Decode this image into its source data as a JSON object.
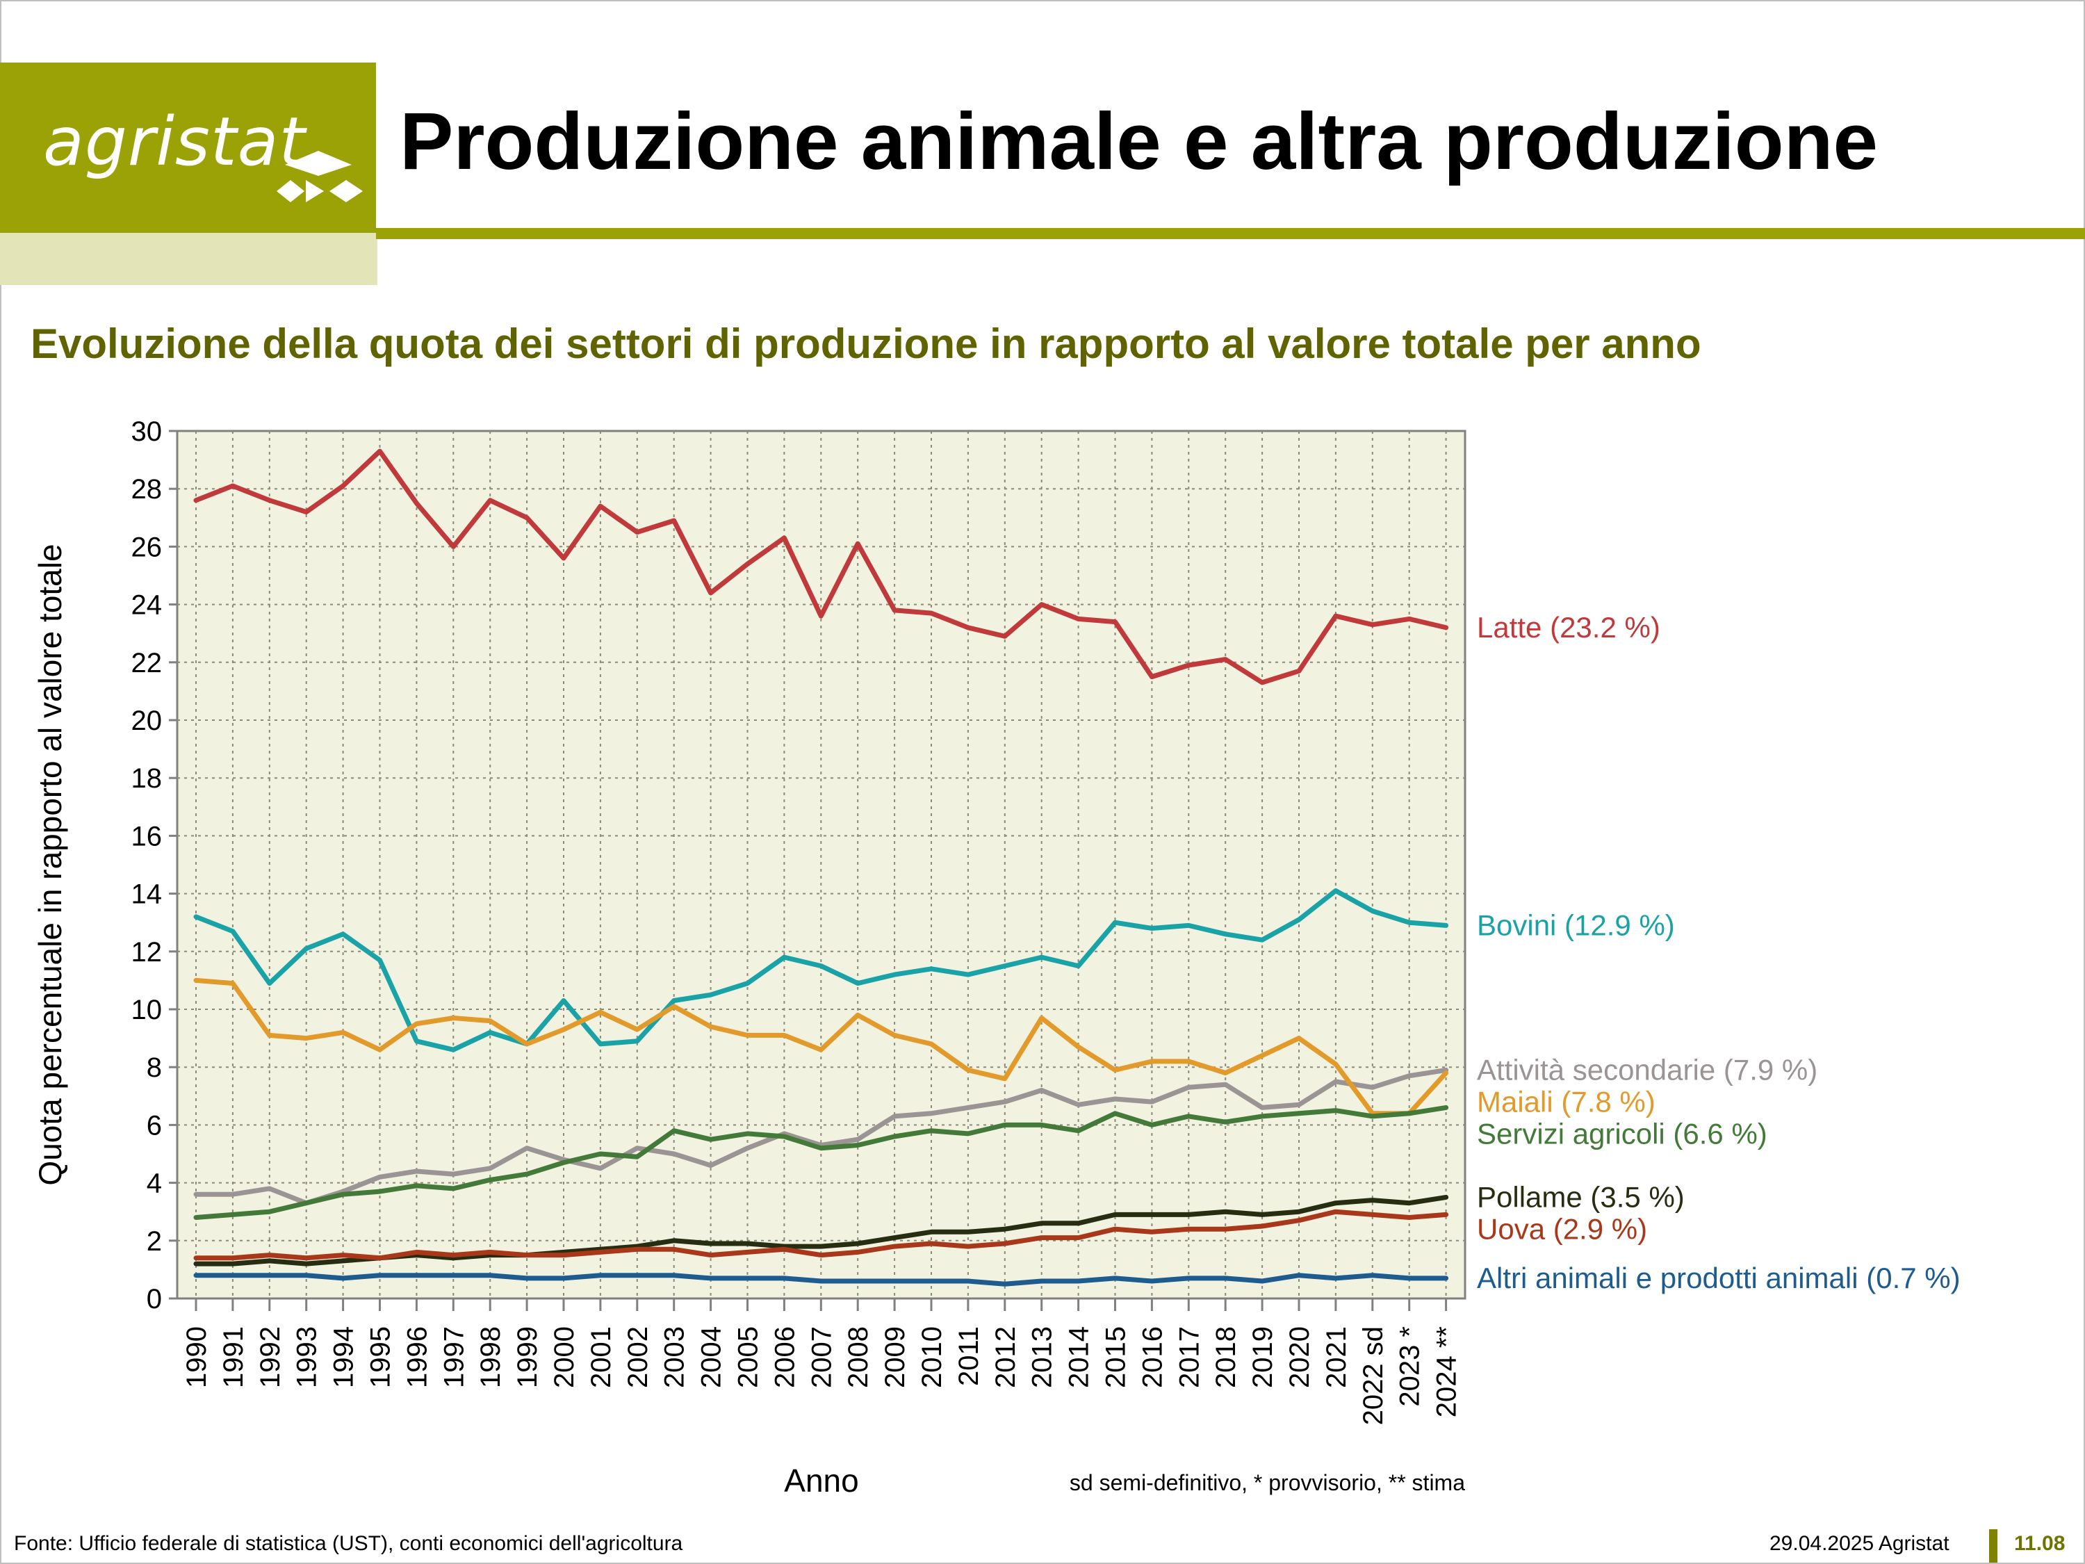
{
  "header": {
    "logo_text": "agristat",
    "title": "Produzione animale e altra produzione",
    "subtitle": "Evoluzione della quota dei settori di produzione in rapporto al valore totale per anno",
    "brand_color": "#9aa206"
  },
  "chart_data": {
    "type": "line",
    "title": "Evoluzione della quota dei settori di produzione in rapporto al valore totale per anno",
    "xlabel": "Anno",
    "ylabel": "Quota percentuale in rapporto al valore totale",
    "ylim": [
      0,
      30
    ],
    "yticks": [
      "0",
      "2",
      "4",
      "6",
      "8",
      "10",
      "12",
      "14",
      "16",
      "18",
      "20",
      "22",
      "24",
      "26",
      "28",
      "30"
    ],
    "grid": true,
    "background": "#f2f2e1",
    "categories": [
      "1990",
      "1991",
      "1992",
      "1993",
      "1994",
      "1995",
      "1996",
      "1997",
      "1998",
      "1999",
      "2000",
      "2001",
      "2002",
      "2003",
      "2004",
      "2005",
      "2006",
      "2007",
      "2008",
      "2009",
      "2010",
      "2011",
      "2012",
      "2013",
      "2014",
      "2015",
      "2016",
      "2017",
      "2018",
      "2019",
      "2020",
      "2021",
      "2022 sd",
      "2023 *",
      "2024 **"
    ],
    "note": "sd semi-definitivo, * provvisorio, ** stima",
    "series": [
      {
        "name": "Latte (23.2 %)",
        "color": "#c0393b",
        "values": [
          27.6,
          28.1,
          27.6,
          27.2,
          28.1,
          29.3,
          27.5,
          26.0,
          27.6,
          27.0,
          25.6,
          27.4,
          26.5,
          26.9,
          24.4,
          25.4,
          26.3,
          23.6,
          26.1,
          23.8,
          23.7,
          23.2,
          22.9,
          24.0,
          23.5,
          23.4,
          21.5,
          21.9,
          22.1,
          21.3,
          21.7,
          23.6,
          23.3,
          23.5,
          23.2
        ]
      },
      {
        "name": "Bovini (12.9 %)",
        "color": "#1aa3a7",
        "values": [
          13.2,
          12.7,
          10.9,
          12.1,
          12.6,
          11.7,
          8.9,
          8.6,
          9.2,
          8.8,
          10.3,
          8.8,
          8.9,
          10.3,
          10.5,
          10.9,
          11.8,
          11.5,
          10.9,
          11.2,
          11.4,
          11.2,
          11.5,
          11.8,
          11.5,
          13.0,
          12.8,
          12.9,
          12.6,
          12.4,
          13.1,
          14.1,
          13.4,
          13.0,
          12.9
        ]
      },
      {
        "name": "Attività secondarie (7.9 %)",
        "color": "#9b9494",
        "values": [
          3.6,
          3.6,
          3.8,
          3.3,
          3.7,
          4.2,
          4.4,
          4.3,
          4.5,
          5.2,
          4.8,
          4.5,
          5.2,
          5.0,
          4.6,
          5.2,
          5.7,
          5.3,
          5.5,
          6.3,
          6.4,
          6.6,
          6.8,
          7.2,
          6.7,
          6.9,
          6.8,
          7.3,
          7.4,
          6.6,
          6.7,
          7.5,
          7.3,
          7.7,
          7.9
        ]
      },
      {
        "name": "Maiali (7.8 %)",
        "color": "#e29a2a",
        "values": [
          11.0,
          10.9,
          9.1,
          9.0,
          9.2,
          8.6,
          9.5,
          9.7,
          9.6,
          8.8,
          9.3,
          9.9,
          9.3,
          10.1,
          9.4,
          9.1,
          9.1,
          8.6,
          9.8,
          9.1,
          8.8,
          7.9,
          7.6,
          9.7,
          8.7,
          7.9,
          8.2,
          8.2,
          7.8,
          8.4,
          9.0,
          8.1,
          6.4,
          6.4,
          7.8
        ]
      },
      {
        "name": "Servizi agricoli (6.6 %)",
        "color": "#437a3a",
        "values": [
          2.8,
          2.9,
          3.0,
          3.3,
          3.6,
          3.7,
          3.9,
          3.8,
          4.1,
          4.3,
          4.7,
          5.0,
          4.9,
          5.8,
          5.5,
          5.7,
          5.6,
          5.2,
          5.3,
          5.6,
          5.8,
          5.7,
          6.0,
          6.0,
          5.8,
          6.4,
          6.0,
          6.3,
          6.1,
          6.3,
          6.4,
          6.5,
          6.3,
          6.4,
          6.6
        ]
      },
      {
        "name": "Pollame (3.5 %)",
        "color": "#262d10",
        "values": [
          1.2,
          1.2,
          1.3,
          1.2,
          1.3,
          1.4,
          1.5,
          1.4,
          1.5,
          1.5,
          1.6,
          1.7,
          1.8,
          2.0,
          1.9,
          1.9,
          1.8,
          1.8,
          1.9,
          2.1,
          2.3,
          2.3,
          2.4,
          2.6,
          2.6,
          2.9,
          2.9,
          2.9,
          3.0,
          2.9,
          3.0,
          3.3,
          3.4,
          3.3,
          3.5
        ]
      },
      {
        "name": "Uova (2.9 %)",
        "color": "#a9381b",
        "values": [
          1.4,
          1.4,
          1.5,
          1.4,
          1.5,
          1.4,
          1.6,
          1.5,
          1.6,
          1.5,
          1.5,
          1.6,
          1.7,
          1.7,
          1.5,
          1.6,
          1.7,
          1.5,
          1.6,
          1.8,
          1.9,
          1.8,
          1.9,
          2.1,
          2.1,
          2.4,
          2.3,
          2.4,
          2.4,
          2.5,
          2.7,
          3.0,
          2.9,
          2.8,
          2.9
        ]
      },
      {
        "name": "Altri animali e prodotti animali (0.7 %)",
        "color": "#1e5b8f",
        "values": [
          0.8,
          0.8,
          0.8,
          0.8,
          0.7,
          0.8,
          0.8,
          0.8,
          0.8,
          0.7,
          0.7,
          0.8,
          0.8,
          0.8,
          0.7,
          0.7,
          0.7,
          0.6,
          0.6,
          0.6,
          0.6,
          0.6,
          0.5,
          0.6,
          0.6,
          0.7,
          0.6,
          0.7,
          0.7,
          0.6,
          0.8,
          0.7,
          0.8,
          0.7,
          0.7
        ]
      }
    ]
  },
  "footer": {
    "source": "Fonte: Ufficio federale di statistica (UST), conti economici dell'agricoltura",
    "date": "29.04.2025 Agristat",
    "page": "11.08"
  }
}
